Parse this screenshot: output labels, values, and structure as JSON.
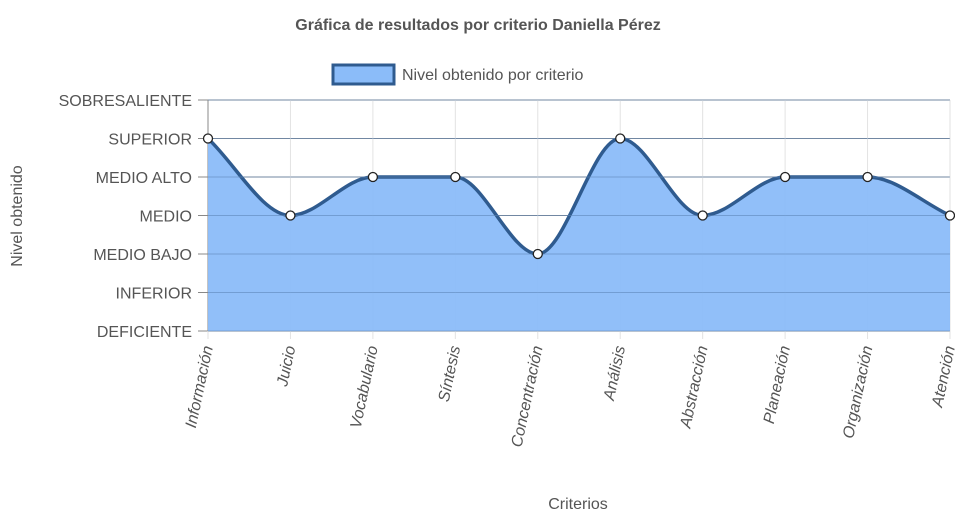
{
  "chart_data": {
    "type": "area",
    "title": "Gráfica de resultados por criterio Daniella Pérez",
    "xlabel": "Criterios",
    "ylabel": "Nivel obtenido",
    "levels": [
      "DEFICIENTE",
      "INFERIOR",
      "MEDIO BAJO",
      "MEDIO",
      "MEDIO ALTO",
      "SUPERIOR",
      "SOBRESALIENTE"
    ],
    "categories": [
      "Información",
      "Juicio",
      "Vocabulario",
      "Síntesis",
      "Concentración",
      "Análisis",
      "Abstracción",
      "Planeación",
      "Organización",
      "Atención"
    ],
    "series": [
      {
        "name": "Nivel obtenido por criterio",
        "values": [
          "SUPERIOR",
          "MEDIO",
          "MEDIO ALTO",
          "MEDIO ALTO",
          "MEDIO BAJO",
          "SUPERIOR",
          "MEDIO",
          "MEDIO ALTO",
          "MEDIO ALTO",
          "MEDIO"
        ],
        "fill_color": "#8bbcf9",
        "line_color": "#2f5b8f"
      }
    ],
    "legend_position": "top",
    "grid": true
  }
}
